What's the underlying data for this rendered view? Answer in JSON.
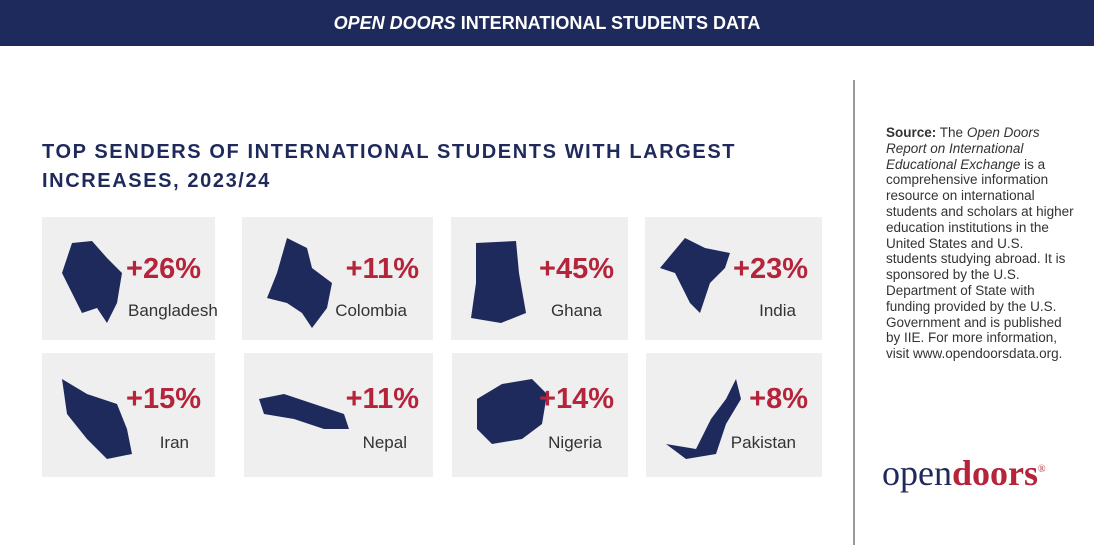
{
  "header": {
    "brand": "OPEN DOORS",
    "title": "INTERNATIONAL STUDENTS DATA"
  },
  "title": "TOP SENDERS OF INTERNATIONAL STUDENTS WITH LARGEST INCREASES, 2023/24",
  "cards": [
    {
      "change": "+26%",
      "country": "Bangladesh"
    },
    {
      "change": "+11%",
      "country": "Colombia"
    },
    {
      "change": "+45%",
      "country": "Ghana"
    },
    {
      "change": "+23%",
      "country": "India"
    },
    {
      "change": "+15%",
      "country": "Iran"
    },
    {
      "change": "+11%",
      "country": "Nepal"
    },
    {
      "change": "+14%",
      "country": "Nigeria"
    },
    {
      "change": "+8%",
      "country": "Pakistan"
    }
  ],
  "source": {
    "label": "Source:",
    "lead": "The",
    "report": "Open Doors Report on International Educational Exchange",
    "text": "is a comprehensive information resource on international students and scholars at higher education institutions in the United States and U.S. students studying abroad. It is sponsored by the U.S. Department of State with funding provided by the U.S. Government and is published by IIE. For more information, visit www.opendoorsdata.org."
  },
  "logo": {
    "first": "open",
    "second": "doors",
    "mark": "®"
  }
}
